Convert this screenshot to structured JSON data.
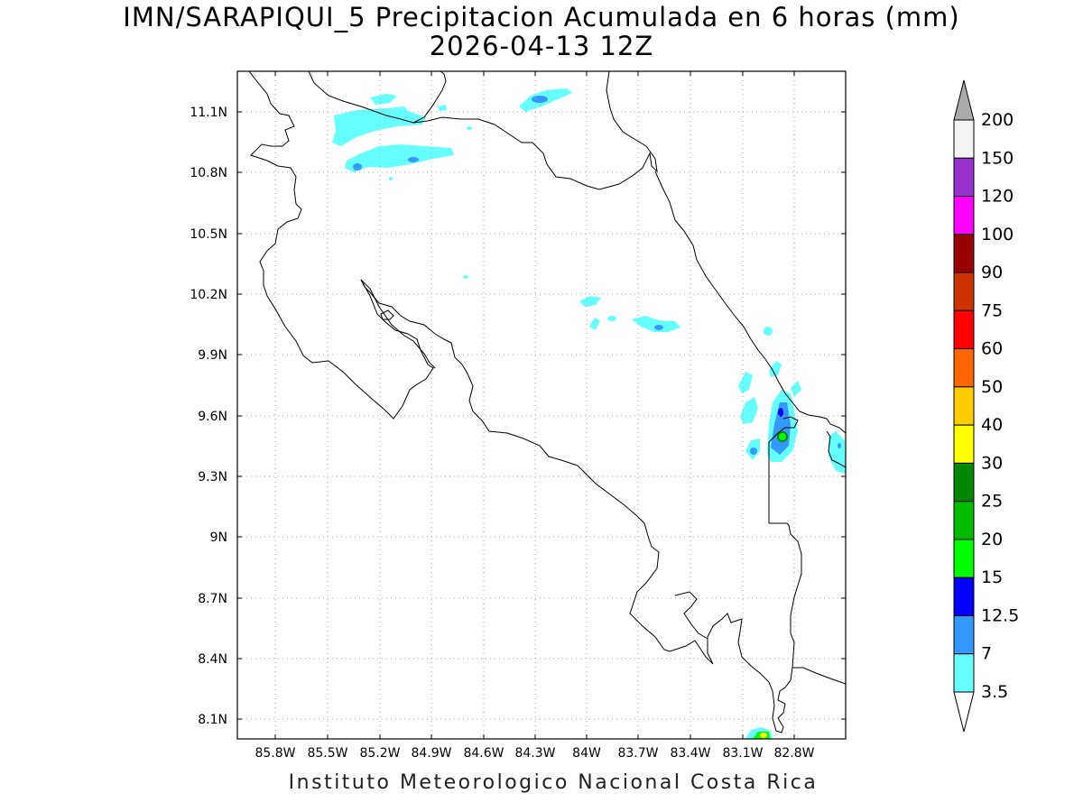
{
  "map": {
    "title_line1": "IMN/SARAPIQUI_5 Precipitacion Acumulada en 6 horas (mm)",
    "title_line2": "2026-04-13 12Z",
    "footer": "Instituto Meteorologico Nacional Costa Rica",
    "lat_ticks": [
      "11.1N",
      "10.8N",
      "10.5N",
      "10.2N",
      "9.9N",
      "9.6N",
      "9.3N",
      "9N",
      "8.7N",
      "8.4N",
      "8.1N"
    ],
    "lon_ticks": [
      "85.8W",
      "85.5W",
      "85.2W",
      "84.9W",
      "84.6W",
      "84.3W",
      "84W",
      "83.7W",
      "83.4W",
      "83.1W",
      "82.8W"
    ]
  },
  "colorbar": {
    "levels": [
      {
        "label": "200",
        "color": "#f4f4f4"
      },
      {
        "label": "150",
        "color": "#9932cc"
      },
      {
        "label": "120",
        "color": "#ff00ff"
      },
      {
        "label": "100",
        "color": "#990000"
      },
      {
        "label": "90",
        "color": "#cc3300"
      },
      {
        "label": "75",
        "color": "#ff0000"
      },
      {
        "label": "60",
        "color": "#ff6600"
      },
      {
        "label": "50",
        "color": "#ffcc00"
      },
      {
        "label": "40",
        "color": "#ffff00"
      },
      {
        "label": "30",
        "color": "#008800"
      },
      {
        "label": "25",
        "color": "#00bb00"
      },
      {
        "label": "20",
        "color": "#00ff00"
      },
      {
        "label": "15",
        "color": "#0000ff"
      },
      {
        "label": "12.5",
        "color": "#3399ff"
      },
      {
        "label": "7",
        "color": "#66ffff"
      },
      {
        "label": "3.5",
        "color": "#ffffff"
      }
    ],
    "top_triangle_color": "#aaaaaa",
    "bottom_triangle_color": "#ffffff"
  }
}
